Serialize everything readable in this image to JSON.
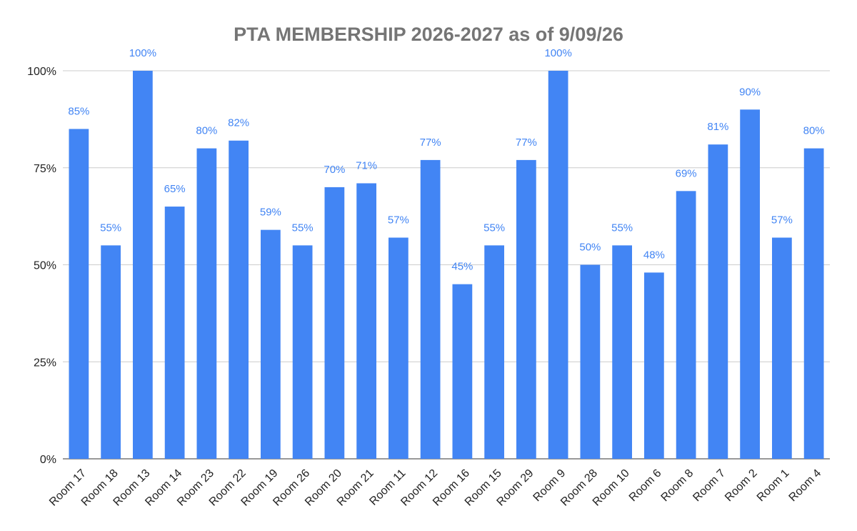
{
  "chart_data": {
    "type": "bar",
    "title": "PTA MEMBERSHIP 2026-2027 as of 9/09/26",
    "xlabel": "",
    "ylabel": "",
    "ylim": [
      0,
      100
    ],
    "yticks": [
      0,
      25,
      50,
      75,
      100
    ],
    "ytick_labels": [
      "0%",
      "25%",
      "50%",
      "75%",
      "100%"
    ],
    "grid": true,
    "legend": "none",
    "bar_color": "#4285f4",
    "label_color": "#4285f4",
    "categories": [
      "Room 17",
      "Room 18",
      "Room 13",
      "Room 14",
      "Room 23",
      "Room 22",
      "Room 19",
      "Room 26",
      "Room 20",
      "Room 21",
      "Room 11",
      "Room 12",
      "Room 16",
      "Room 15",
      "Room 29",
      "Room 9",
      "Room 28",
      "Room 10",
      "Room 6",
      "Room 8",
      "Room 7",
      "Room 2",
      "Room 1",
      "Room 4"
    ],
    "values": [
      85,
      55,
      100,
      65,
      80,
      82,
      59,
      55,
      70,
      71,
      57,
      77,
      45,
      55,
      77,
      100,
      50,
      55,
      48,
      69,
      81,
      90,
      57,
      80
    ],
    "data_labels": [
      "85%",
      "55%",
      "100%",
      "65%",
      "80%",
      "82%",
      "59%",
      "55%",
      "70%",
      "71%",
      "57%",
      "77%",
      "45%",
      "55%",
      "77%",
      "100%",
      "50%",
      "55%",
      "48%",
      "69%",
      "81%",
      "90%",
      "57%",
      "80%"
    ]
  }
}
